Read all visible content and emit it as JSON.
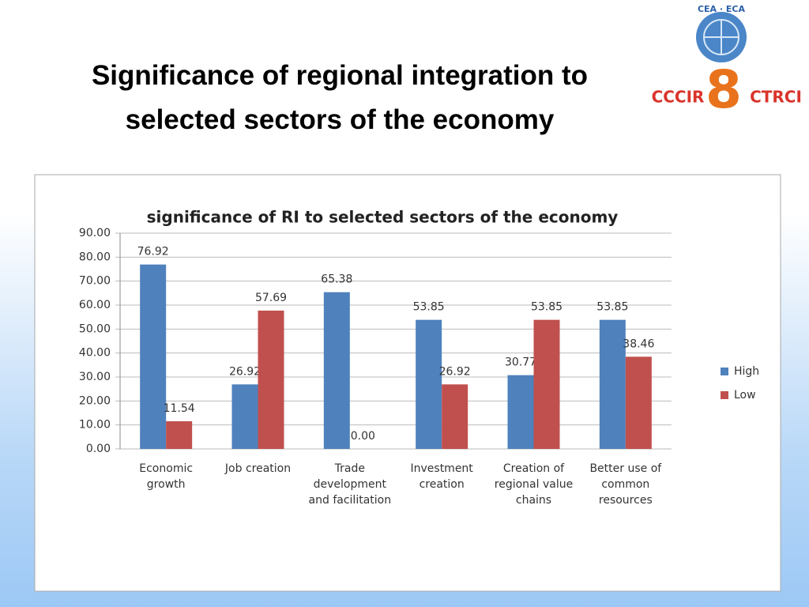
{
  "slide_title": "Significance of regional integration to selected sectors of the economy",
  "logo": {
    "top": "CEA · ECA",
    "left": "CCCIR",
    "center": "8",
    "right": "CTRCI"
  },
  "chart_data": {
    "type": "bar",
    "title": "significance of RI to selected sectors of the economy",
    "categories": [
      "Economic growth",
      "Job creation",
      "Trade development and facilitation",
      "Investment creation",
      "Creation of regional value chains",
      "Better use of common resources"
    ],
    "series": [
      {
        "name": "High",
        "color": "#4f81bd",
        "values": [
          76.92,
          26.92,
          65.38,
          53.85,
          30.77,
          53.85
        ],
        "value_labels": [
          "76.92",
          "26.92",
          "65.38",
          "53.85",
          "30.77",
          "53.85"
        ]
      },
      {
        "name": "Low",
        "color": "#c0504d",
        "values": [
          11.54,
          57.69,
          0,
          26.92,
          53.85,
          38.46
        ],
        "value_labels": [
          "11.54",
          "57.69",
          "0.00",
          "26.92",
          "53.85",
          "38.46"
        ]
      }
    ],
    "ylim": [
      0,
      90
    ],
    "yticks": [
      {
        "value": 0,
        "label": "0.00"
      },
      {
        "value": 10,
        "label": "10.00"
      },
      {
        "value": 20,
        "label": "20.00"
      },
      {
        "value": 30,
        "label": "30.00"
      },
      {
        "value": 40,
        "label": "40.00"
      },
      {
        "value": 50,
        "label": "50.00"
      },
      {
        "value": 60,
        "label": "60.00"
      },
      {
        "value": 70,
        "label": "70.00"
      },
      {
        "value": 80,
        "label": "80.00"
      },
      {
        "value": 90,
        "label": "90.00"
      }
    ],
    "grid": true,
    "legend": "right"
  }
}
